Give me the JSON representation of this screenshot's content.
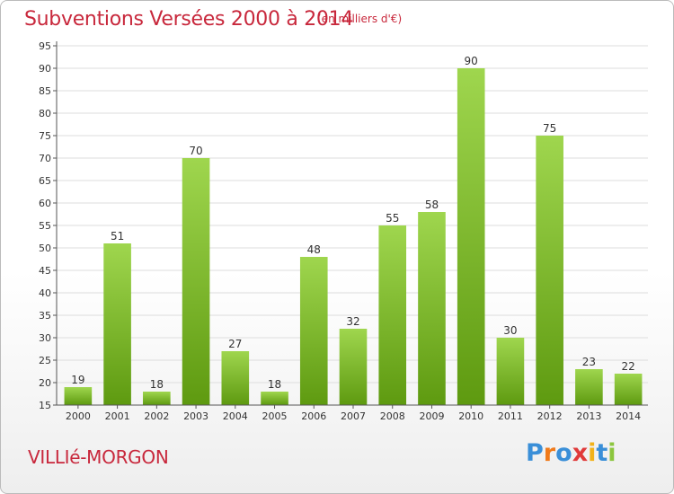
{
  "header": {
    "title": "Subventions Versées 2000 à 2014",
    "subtitle": "(en milliers d'€)"
  },
  "footer": {
    "commune": "VILLIé-MORGON",
    "logo_text": "Proxiti",
    "logo_colors": [
      "#3a8fd8",
      "#f07a1a",
      "#3a8fd8",
      "#e03a3a",
      "#f2b21a",
      "#3a8fd8",
      "#8cc63e"
    ]
  },
  "colors": {
    "bar_light": "#9fd64e",
    "bar_dark": "#5e9a10",
    "grid": "#dddddd",
    "axis": "#555555"
  },
  "chart_data": {
    "type": "bar",
    "categories": [
      "2000",
      "2001",
      "2002",
      "2003",
      "2004",
      "2005",
      "2006",
      "2007",
      "2008",
      "2009",
      "2010",
      "2011",
      "2012",
      "2013",
      "2014"
    ],
    "values": [
      19,
      51,
      18,
      70,
      27,
      18,
      48,
      32,
      55,
      58,
      90,
      30,
      75,
      23,
      22
    ],
    "title": "Subventions Versées 2000 à 2014",
    "ylabel": "",
    "xlabel": "",
    "ylim": [
      15,
      95
    ],
    "ytick_step": 5,
    "grid": true,
    "legend": "none"
  }
}
